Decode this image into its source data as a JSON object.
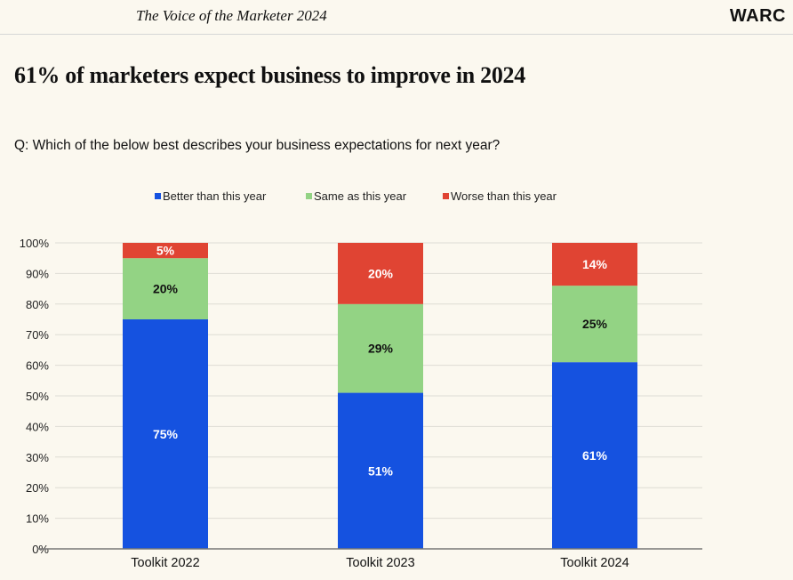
{
  "header": {
    "publication": "The Voice of the Marketer 2024",
    "logo": "WARC"
  },
  "headline": "61% of marketers expect business to improve in 2024",
  "question": "Q: Which of the below best describes your business expectations for next year?",
  "chart_data": {
    "type": "stacked-bar",
    "categories": [
      "Toolkit 2022",
      "Toolkit 2023",
      "Toolkit 2024"
    ],
    "series": [
      {
        "name": "Better than this year",
        "color": "#1552e0",
        "values": [
          75,
          51,
          61
        ]
      },
      {
        "name": "Same as this year",
        "color": "#93d384",
        "values": [
          20,
          29,
          25
        ]
      },
      {
        "name": "Worse than this year",
        "color": "#e04433",
        "values": [
          5,
          20,
          14
        ]
      }
    ],
    "data_labels": [
      [
        "75%",
        "51%",
        "61%"
      ],
      [
        "20%",
        "29%",
        "25%"
      ],
      [
        "5%",
        "20%",
        "14%"
      ]
    ],
    "ylim": [
      0,
      100
    ],
    "yticks": [
      "0%",
      "10%",
      "20%",
      "30%",
      "40%",
      "50%",
      "60%",
      "70%",
      "80%",
      "90%",
      "100%"
    ],
    "grid": true,
    "legend": "top"
  }
}
